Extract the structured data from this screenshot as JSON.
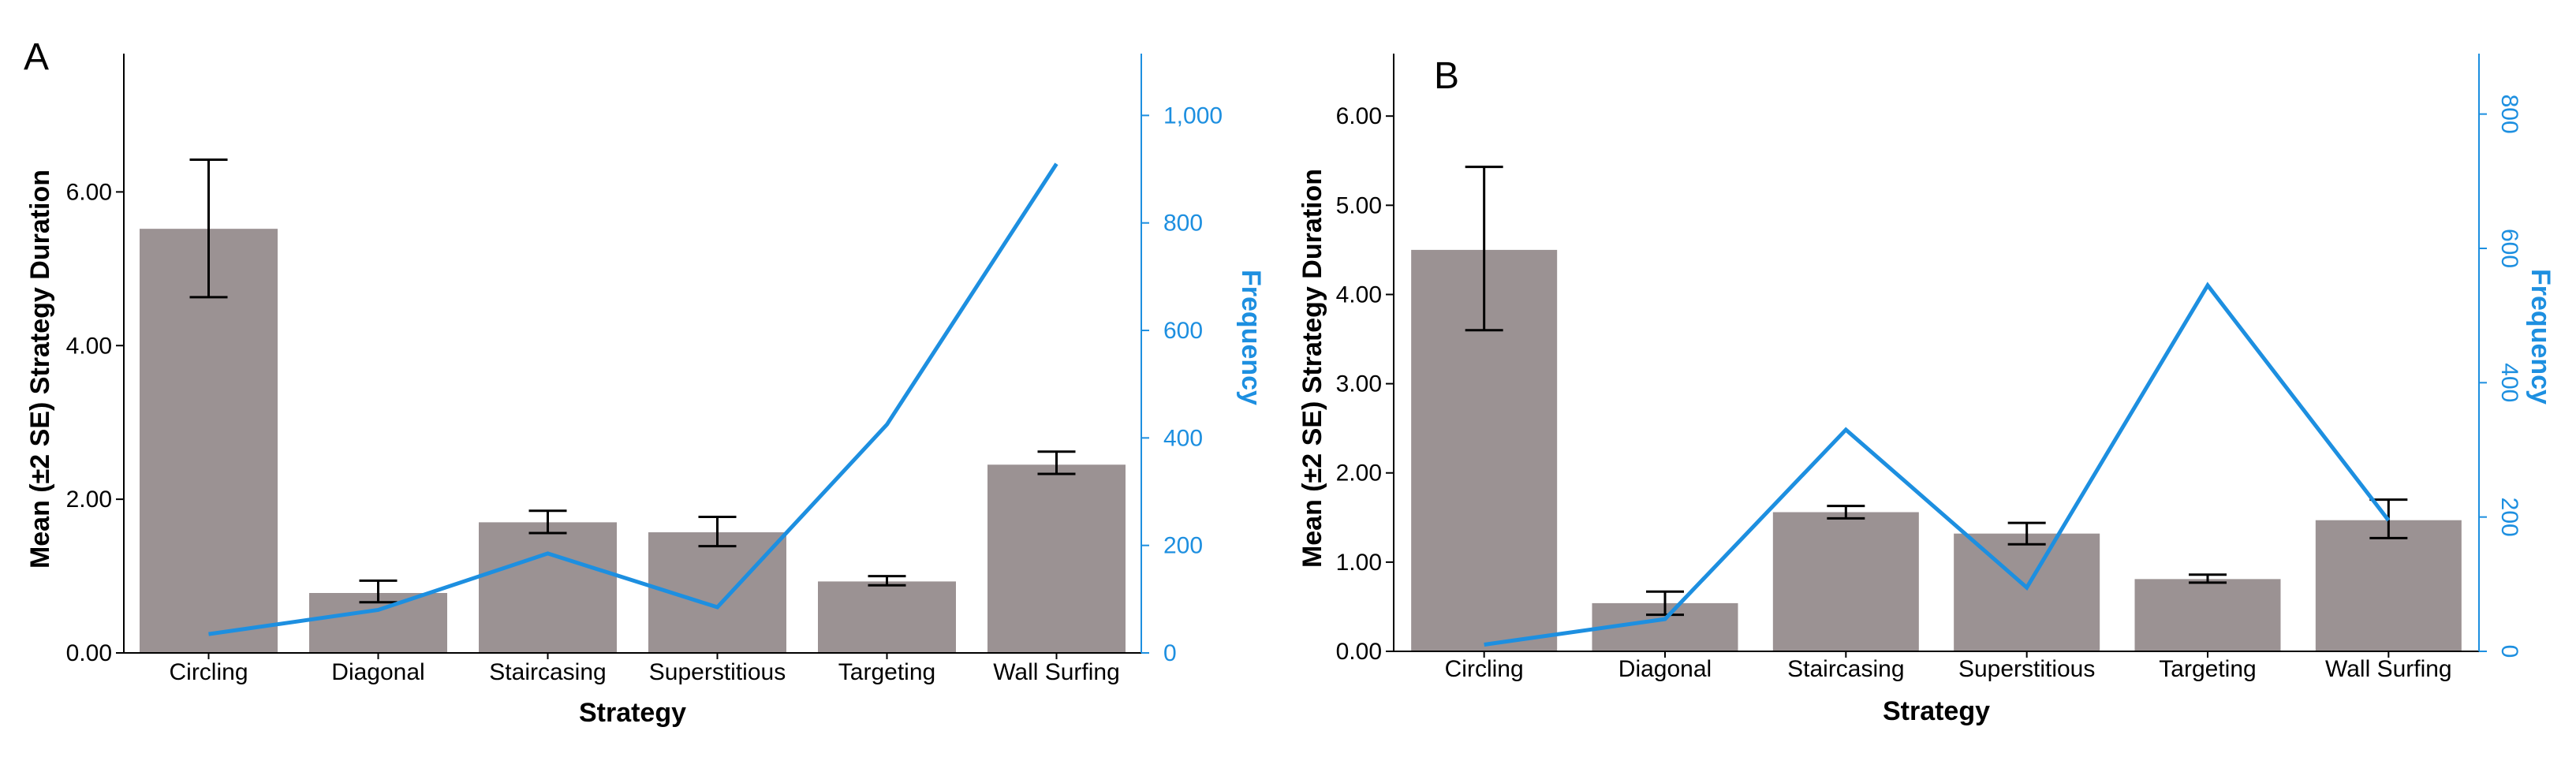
{
  "colors": {
    "bar": "#9b9293",
    "line": "#1d8fe0",
    "axis": "#000000",
    "error_bar": "#000000"
  },
  "chart_data": [
    {
      "type": "bar",
      "panel_label": "A",
      "categories": [
        "Circling",
        "Diagonal",
        "Staircasing",
        "Superstitious",
        "Targeting",
        "Wall Surfing"
      ],
      "xlabel": "Strategy",
      "ylabel": "Mean (±2 SE) Strategy Duration",
      "ylim": [
        0,
        7.8
      ],
      "yticks": [
        0,
        2,
        4,
        6
      ],
      "ytick_labels": [
        "0.00",
        "2.00",
        "4.00",
        "6.00"
      ],
      "series": [
        {
          "name": "Mean Strategy Duration",
          "type": "bar",
          "values": [
            5.52,
            0.78,
            1.7,
            1.57,
            0.93,
            2.45
          ],
          "err_low": [
            4.63,
            0.66,
            1.56,
            1.39,
            0.88,
            2.33
          ],
          "err_high": [
            6.42,
            0.94,
            1.85,
            1.77,
            1.0,
            2.62
          ]
        },
        {
          "name": "Frequency",
          "type": "line",
          "axis": "right",
          "values": [
            35,
            80,
            185,
            85,
            425,
            910
          ]
        }
      ],
      "y2label": "Frequency",
      "y2lim": [
        0,
        1115
      ],
      "y2ticks": [
        0,
        200,
        400,
        600,
        800,
        1000
      ],
      "y2tick_labels": [
        "0",
        "200",
        "400",
        "600",
        "800",
        "1,000"
      ]
    },
    {
      "type": "bar",
      "panel_label": "B",
      "categories": [
        "Circling",
        "Diagonal",
        "Staircasing",
        "Superstitious",
        "Targeting",
        "Wall Surfing"
      ],
      "xlabel": "Strategy",
      "ylabel": "Mean (±2 SE) Strategy Duration",
      "ylim": [
        0,
        6.7
      ],
      "yticks": [
        0,
        1,
        2,
        3,
        4,
        5,
        6
      ],
      "ytick_labels": [
        "0.00",
        "1.00",
        "2.00",
        "3.00",
        "4.00",
        "5.00",
        "6.00"
      ],
      "series": [
        {
          "name": "Mean Strategy Duration",
          "type": "bar",
          "values": [
            4.5,
            0.54,
            1.56,
            1.32,
            0.81,
            1.47
          ],
          "err_low": [
            3.6,
            0.41,
            1.49,
            1.2,
            0.77,
            1.27
          ],
          "err_high": [
            5.43,
            0.67,
            1.63,
            1.44,
            0.86,
            1.7
          ]
        },
        {
          "name": "Frequency",
          "type": "line",
          "axis": "right",
          "values": [
            10,
            48,
            330,
            95,
            545,
            195
          ]
        }
      ],
      "y2label": "Frequency",
      "y2lim": [
        0,
        890
      ],
      "y2ticks": [
        0,
        200,
        400,
        600,
        800
      ],
      "y2tick_labels": [
        "0",
        "200",
        "400",
        "600",
        "800"
      ]
    }
  ]
}
